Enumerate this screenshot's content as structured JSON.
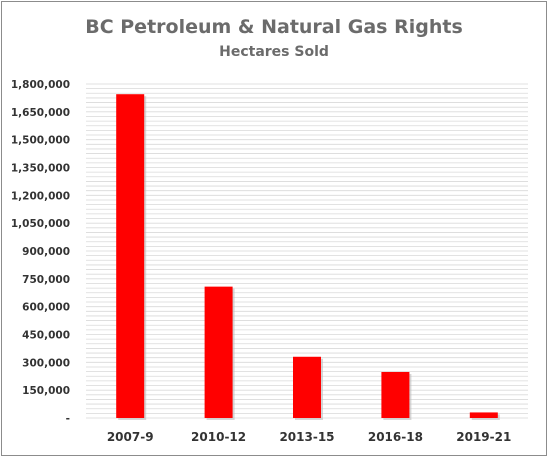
{
  "chart_data": {
    "type": "bar",
    "title": "BC Petroleum & Natural Gas Rights",
    "subtitle": "Hectares Sold",
    "xlabel": "",
    "ylabel": "",
    "categories": [
      "2007-9",
      "2010-12",
      "2013-15",
      "2016-18",
      "2019-21"
    ],
    "values": [
      1745000,
      708000,
      330000,
      248000,
      30000
    ],
    "ylim": [
      0,
      1800000
    ],
    "ytick_values": [
      0,
      150000,
      300000,
      450000,
      600000,
      750000,
      900000,
      1050000,
      1200000,
      1350000,
      1500000,
      1650000,
      1800000
    ],
    "ytick_labels": [
      "-",
      "150,000",
      "300,000",
      "450,000",
      "600,000",
      "750,000",
      "900,000",
      "1,050,000",
      "1,200,000",
      "1,350,000",
      "1,500,000",
      "1,650,000",
      "1,800,000"
    ],
    "grid": true,
    "legend": "none",
    "bar_color": "#ff0000",
    "grid_color": "#d9d9d9"
  }
}
